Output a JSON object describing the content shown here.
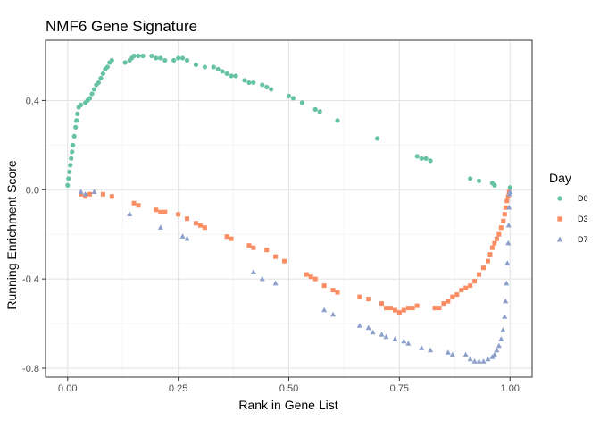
{
  "chart_data": {
    "type": "scatter",
    "title": "NMF6 Gene Signature",
    "xlabel": "Rank in Gene List",
    "ylabel": "Running Enrichment Score",
    "xlim": [
      -0.05,
      1.05
    ],
    "ylim": [
      -0.84,
      0.67
    ],
    "x_ticks": [
      0.0,
      0.25,
      0.5,
      0.75,
      1.0
    ],
    "x_tick_labels": [
      "0.00",
      "0.25",
      "0.50",
      "0.75",
      "1.00"
    ],
    "y_ticks": [
      -0.8,
      -0.4,
      0.0,
      0.4
    ],
    "y_tick_labels": [
      "-0.8",
      "-0.4",
      "0.0",
      "0.4"
    ],
    "grid": true,
    "legend": {
      "title": "Day",
      "position": "right"
    },
    "series": [
      {
        "name": "D0",
        "color": "#66c2a5",
        "marker": "circle",
        "points": [
          [
            0.0,
            0.02
          ],
          [
            0.002,
            0.05
          ],
          [
            0.004,
            0.08
          ],
          [
            0.006,
            0.11
          ],
          [
            0.008,
            0.14
          ],
          [
            0.01,
            0.17
          ],
          [
            0.012,
            0.2
          ],
          [
            0.015,
            0.24
          ],
          [
            0.018,
            0.28
          ],
          [
            0.02,
            0.31
          ],
          [
            0.022,
            0.34
          ],
          [
            0.025,
            0.37
          ],
          [
            0.03,
            0.38
          ],
          [
            0.04,
            0.39
          ],
          [
            0.045,
            0.4
          ],
          [
            0.05,
            0.41
          ],
          [
            0.055,
            0.43
          ],
          [
            0.06,
            0.45
          ],
          [
            0.065,
            0.47
          ],
          [
            0.07,
            0.48
          ],
          [
            0.075,
            0.5
          ],
          [
            0.08,
            0.52
          ],
          [
            0.085,
            0.54
          ],
          [
            0.09,
            0.55
          ],
          [
            0.095,
            0.57
          ],
          [
            0.1,
            0.58
          ],
          [
            0.13,
            0.57
          ],
          [
            0.14,
            0.58
          ],
          [
            0.145,
            0.59
          ],
          [
            0.15,
            0.6
          ],
          [
            0.16,
            0.6
          ],
          [
            0.17,
            0.6
          ],
          [
            0.19,
            0.6
          ],
          [
            0.2,
            0.59
          ],
          [
            0.21,
            0.59
          ],
          [
            0.22,
            0.58
          ],
          [
            0.24,
            0.58
          ],
          [
            0.25,
            0.59
          ],
          [
            0.26,
            0.59
          ],
          [
            0.27,
            0.58
          ],
          [
            0.29,
            0.56
          ],
          [
            0.31,
            0.55
          ],
          [
            0.33,
            0.55
          ],
          [
            0.34,
            0.54
          ],
          [
            0.35,
            0.53
          ],
          [
            0.36,
            0.52
          ],
          [
            0.37,
            0.51
          ],
          [
            0.38,
            0.51
          ],
          [
            0.4,
            0.49
          ],
          [
            0.41,
            0.48
          ],
          [
            0.42,
            0.48
          ],
          [
            0.44,
            0.47
          ],
          [
            0.45,
            0.46
          ],
          [
            0.46,
            0.45
          ],
          [
            0.5,
            0.42
          ],
          [
            0.51,
            0.41
          ],
          [
            0.53,
            0.39
          ],
          [
            0.56,
            0.36
          ],
          [
            0.57,
            0.35
          ],
          [
            0.61,
            0.31
          ],
          [
            0.7,
            0.23
          ],
          [
            0.79,
            0.15
          ],
          [
            0.8,
            0.14
          ],
          [
            0.81,
            0.14
          ],
          [
            0.82,
            0.13
          ],
          [
            0.91,
            0.05
          ],
          [
            0.93,
            0.04
          ],
          [
            0.96,
            0.03
          ],
          [
            0.965,
            0.02
          ],
          [
            1.0,
            0.01
          ]
        ]
      },
      {
        "name": "D3",
        "color": "#fc8d62",
        "marker": "square",
        "points": [
          [
            0.03,
            -0.02
          ],
          [
            0.04,
            -0.03
          ],
          [
            0.05,
            -0.02
          ],
          [
            0.08,
            -0.02
          ],
          [
            0.1,
            -0.03
          ],
          [
            0.15,
            -0.06
          ],
          [
            0.16,
            -0.07
          ],
          [
            0.2,
            -0.09
          ],
          [
            0.21,
            -0.1
          ],
          [
            0.22,
            -0.1
          ],
          [
            0.25,
            -0.11
          ],
          [
            0.27,
            -0.13
          ],
          [
            0.29,
            -0.15
          ],
          [
            0.3,
            -0.16
          ],
          [
            0.31,
            -0.17
          ],
          [
            0.36,
            -0.21
          ],
          [
            0.37,
            -0.22
          ],
          [
            0.41,
            -0.25
          ],
          [
            0.42,
            -0.26
          ],
          [
            0.45,
            -0.27
          ],
          [
            0.47,
            -0.3
          ],
          [
            0.49,
            -0.32
          ],
          [
            0.54,
            -0.38
          ],
          [
            0.55,
            -0.39
          ],
          [
            0.56,
            -0.4
          ],
          [
            0.58,
            -0.43
          ],
          [
            0.6,
            -0.45
          ],
          [
            0.61,
            -0.46
          ],
          [
            0.66,
            -0.48
          ],
          [
            0.68,
            -0.49
          ],
          [
            0.71,
            -0.51
          ],
          [
            0.72,
            -0.53
          ],
          [
            0.73,
            -0.53
          ],
          [
            0.74,
            -0.54
          ],
          [
            0.75,
            -0.55
          ],
          [
            0.76,
            -0.54
          ],
          [
            0.77,
            -0.53
          ],
          [
            0.78,
            -0.53
          ],
          [
            0.79,
            -0.52
          ],
          [
            0.83,
            -0.53
          ],
          [
            0.84,
            -0.53
          ],
          [
            0.85,
            -0.51
          ],
          [
            0.86,
            -0.5
          ],
          [
            0.87,
            -0.48
          ],
          [
            0.88,
            -0.47
          ],
          [
            0.89,
            -0.45
          ],
          [
            0.9,
            -0.44
          ],
          [
            0.91,
            -0.43
          ],
          [
            0.92,
            -0.41
          ],
          [
            0.93,
            -0.38
          ],
          [
            0.94,
            -0.35
          ],
          [
            0.95,
            -0.32
          ],
          [
            0.955,
            -0.29
          ],
          [
            0.96,
            -0.26
          ],
          [
            0.965,
            -0.24
          ],
          [
            0.97,
            -0.22
          ],
          [
            0.975,
            -0.2
          ],
          [
            0.98,
            -0.17
          ],
          [
            0.985,
            -0.14
          ],
          [
            0.988,
            -0.11
          ],
          [
            0.99,
            -0.08
          ],
          [
            0.993,
            -0.05
          ],
          [
            0.996,
            -0.03
          ],
          [
            0.998,
            -0.01
          ]
        ]
      },
      {
        "name": "D7",
        "color": "#8da0cb",
        "marker": "triangle",
        "points": [
          [
            0.03,
            -0.01
          ],
          [
            0.04,
            -0.02
          ],
          [
            0.06,
            -0.01
          ],
          [
            0.14,
            -0.11
          ],
          [
            0.21,
            -0.17
          ],
          [
            0.26,
            -0.21
          ],
          [
            0.27,
            -0.22
          ],
          [
            0.42,
            -0.37
          ],
          [
            0.44,
            -0.4
          ],
          [
            0.47,
            -0.42
          ],
          [
            0.58,
            -0.54
          ],
          [
            0.6,
            -0.56
          ],
          [
            0.66,
            -0.61
          ],
          [
            0.68,
            -0.62
          ],
          [
            0.69,
            -0.64
          ],
          [
            0.71,
            -0.65
          ],
          [
            0.72,
            -0.66
          ],
          [
            0.74,
            -0.67
          ],
          [
            0.76,
            -0.68
          ],
          [
            0.77,
            -0.69
          ],
          [
            0.8,
            -0.71
          ],
          [
            0.82,
            -0.72
          ],
          [
            0.86,
            -0.73
          ],
          [
            0.87,
            -0.74
          ],
          [
            0.9,
            -0.74
          ],
          [
            0.91,
            -0.76
          ],
          [
            0.92,
            -0.77
          ],
          [
            0.93,
            -0.77
          ],
          [
            0.94,
            -0.77
          ],
          [
            0.95,
            -0.76
          ],
          [
            0.96,
            -0.75
          ],
          [
            0.965,
            -0.74
          ],
          [
            0.97,
            -0.72
          ],
          [
            0.975,
            -0.7
          ],
          [
            0.98,
            -0.67
          ],
          [
            0.984,
            -0.63
          ],
          [
            0.988,
            -0.57
          ],
          [
            0.99,
            -0.5
          ],
          [
            0.992,
            -0.42
          ],
          [
            0.994,
            -0.33
          ],
          [
            0.996,
            -0.24
          ],
          [
            0.997,
            -0.16
          ],
          [
            0.998,
            -0.08
          ],
          [
            0.999,
            -0.02
          ],
          [
            1.0,
            -0.01
          ]
        ]
      }
    ]
  }
}
